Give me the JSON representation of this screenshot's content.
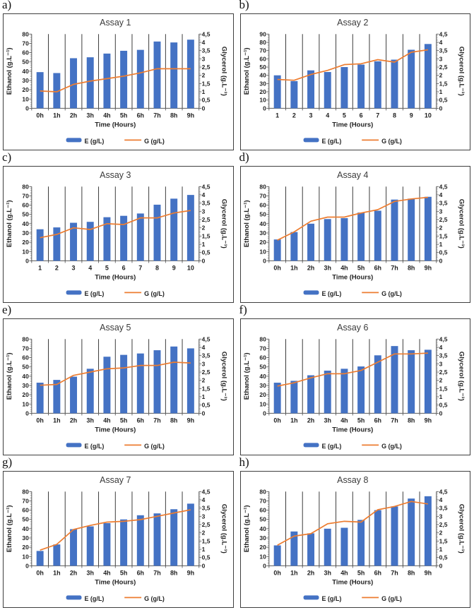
{
  "figure": {
    "colors": {
      "bar": "#4472C4",
      "line": "#ED7D31",
      "gridline": "#262626",
      "axis_line": "#595959",
      "tick_text": "#1f1f1f",
      "title_text": "#3a3a3a",
      "panel_border": "#3f3f3f",
      "background": "#ffffff"
    },
    "legend": {
      "bar_label": "E (g/L)",
      "line_label": "G (g/L)"
    }
  },
  "chart_data": [
    {
      "panel_label": "a)",
      "type": "bar",
      "title": "Assay 1",
      "xlabel": "Time (Hours)",
      "ylabel_left": "Ethanol (g.L⁻¹)",
      "ylabel_right": "Glycerol (g.L⁻¹)",
      "left_axis": {
        "min": 0,
        "max": 80,
        "step": 10
      },
      "right_axis": {
        "min": 0,
        "max": 4.5,
        "step": 0.5,
        "decimal": "comma"
      },
      "categories": [
        "0h",
        "1h",
        "2h",
        "3h",
        "4h",
        "5h",
        "6h",
        "7h",
        "8h",
        "9h"
      ],
      "grid": "vertical-category-lines",
      "legend_position": "bottom",
      "series": [
        {
          "name": "E (g/L)",
          "type": "bar",
          "axis": "left",
          "values": [
            39,
            38,
            54,
            55,
            59,
            62,
            63,
            72,
            71,
            74
          ]
        },
        {
          "name": "G (g/L)",
          "type": "line",
          "axis": "right",
          "values": [
            1.05,
            1.0,
            1.45,
            1.65,
            1.8,
            1.95,
            2.15,
            2.4,
            2.4,
            2.4
          ]
        }
      ]
    },
    {
      "panel_label": "b)",
      "type": "bar",
      "title": "Assay 2",
      "xlabel": "Time (Hours)",
      "ylabel_left": "Ethanol (g.L⁻¹)",
      "ylabel_right": "Glycerol (g.L⁻¹)",
      "left_axis": {
        "min": 0,
        "max": 90,
        "step": 10
      },
      "right_axis": {
        "min": 0,
        "max": 4.5,
        "step": 0.5,
        "decimal": "comma"
      },
      "categories": [
        "1",
        "2",
        "3",
        "4",
        "5",
        "6",
        "7",
        "8",
        "9",
        "10"
      ],
      "grid": "vertical-category-lines",
      "legend_position": "bottom",
      "series": [
        {
          "name": "E (g/L)",
          "type": "bar",
          "axis": "left",
          "values": [
            40,
            33,
            46,
            44,
            50,
            53,
            57,
            59,
            71,
            78
          ]
        },
        {
          "name": "G (g/L)",
          "type": "line",
          "axis": "right",
          "values": [
            1.75,
            1.7,
            2.05,
            2.3,
            2.65,
            2.7,
            2.95,
            2.8,
            3.4,
            3.55
          ]
        }
      ]
    },
    {
      "panel_label": "c)",
      "type": "bar",
      "title": "Assay 3",
      "xlabel": "Time (Hours)",
      "ylabel_left": "Ethanol (g.L⁻¹)",
      "ylabel_right": "Glycerol (g.L⁻¹)",
      "left_axis": {
        "min": 0,
        "max": 80,
        "step": 10
      },
      "right_axis": {
        "min": 0,
        "max": 4.5,
        "step": 0.5,
        "decimal": "comma"
      },
      "categories": [
        "1",
        "2",
        "3",
        "4",
        "5",
        "6",
        "7",
        "8",
        "9",
        "10"
      ],
      "grid": "vertical-category-lines",
      "legend_position": "bottom",
      "series": [
        {
          "name": "E (g/L)",
          "type": "bar",
          "axis": "left",
          "values": [
            34,
            36,
            41,
            42,
            47,
            48.5,
            51,
            60.5,
            67,
            71
          ]
        },
        {
          "name": "G (g/L)",
          "type": "line",
          "axis": "right",
          "values": [
            1.4,
            1.6,
            2.0,
            1.9,
            2.25,
            2.2,
            2.6,
            2.6,
            2.9,
            3.05
          ]
        }
      ]
    },
    {
      "panel_label": "d)",
      "type": "bar",
      "title": "Assay 4",
      "xlabel": "Time (Hours)",
      "ylabel_left": "Ethanol (g.L⁻¹)",
      "ylabel_right": "Glycerol (g.L⁻¹)",
      "left_axis": {
        "min": 0,
        "max": 80,
        "step": 10
      },
      "right_axis": {
        "min": 0,
        "max": 4.5,
        "step": 0.5,
        "decimal": "comma"
      },
      "categories": [
        "0h",
        "1h",
        "2h",
        "3h",
        "4h",
        "5h",
        "6h",
        "7h",
        "8h",
        "9h"
      ],
      "grid": "vertical-category-lines",
      "legend_position": "bottom",
      "series": [
        {
          "name": "E (g/L)",
          "type": "bar",
          "axis": "left",
          "values": [
            23,
            31,
            40,
            45,
            46,
            52,
            54,
            66,
            67,
            69
          ]
        },
        {
          "name": "G (g/L)",
          "type": "line",
          "axis": "right",
          "values": [
            1.25,
            1.75,
            2.4,
            2.65,
            2.65,
            2.9,
            3.1,
            3.6,
            3.75,
            3.85
          ]
        }
      ]
    },
    {
      "panel_label": "e)",
      "type": "bar",
      "title": "Assay 5",
      "xlabel": "Time (Hours)",
      "ylabel_left": "Ethanol (g.L⁻¹)",
      "ylabel_right": "Glycerol (g.L⁻¹)",
      "left_axis": {
        "min": 0,
        "max": 80,
        "step": 10
      },
      "right_axis": {
        "min": 0,
        "max": 4.5,
        "step": 0.5,
        "decimal": "comma"
      },
      "categories": [
        "0h",
        "1h",
        "2h",
        "3h",
        "4h",
        "5h",
        "6h",
        "7h",
        "8h",
        "9h"
      ],
      "grid": "vertical-category-lines",
      "legend_position": "bottom",
      "series": [
        {
          "name": "E (g/L)",
          "type": "bar",
          "axis": "left",
          "values": [
            33,
            36,
            39.5,
            48,
            61,
            63,
            64.5,
            68,
            72,
            70
          ]
        },
        {
          "name": "G (g/L)",
          "type": "line",
          "axis": "right",
          "values": [
            1.7,
            1.75,
            2.3,
            2.5,
            2.7,
            2.75,
            2.9,
            2.9,
            3.1,
            3.05
          ]
        }
      ]
    },
    {
      "panel_label": "f)",
      "type": "bar",
      "title": "Assay 6",
      "xlabel": "Time (Hours)",
      "ylabel_left": "Ethanol (g.L⁻¹)",
      "ylabel_right": "Glycerol (g.L⁻¹)",
      "left_axis": {
        "min": 0,
        "max": 80,
        "step": 10
      },
      "right_axis": {
        "min": 0,
        "max": 4.5,
        "step": 0.5,
        "decimal": "comma"
      },
      "categories": [
        "0h",
        "1h",
        "2h",
        "3h",
        "4h",
        "5h",
        "6h",
        "7h",
        "8h",
        "9h"
      ],
      "grid": "vertical-category-lines",
      "legend_position": "bottom",
      "series": [
        {
          "name": "E (g/L)",
          "type": "bar",
          "axis": "left",
          "values": [
            33,
            35,
            41,
            46,
            48,
            50.5,
            62.5,
            72.5,
            68,
            68.5
          ]
        },
        {
          "name": "G (g/L)",
          "type": "line",
          "axis": "right",
          "values": [
            1.65,
            1.85,
            2.15,
            2.4,
            2.4,
            2.6,
            3.1,
            3.6,
            3.6,
            3.65
          ]
        }
      ]
    },
    {
      "panel_label": "g)",
      "type": "bar",
      "title": "Assay 7",
      "xlabel": "Time (Hours)",
      "ylabel_left": "Ethanol (g.L⁻¹)",
      "ylabel_right": "Glycerol (g.L⁻¹)",
      "left_axis": {
        "min": 0,
        "max": 80,
        "step": 10
      },
      "right_axis": {
        "min": 0,
        "max": 4.5,
        "step": 0.5,
        "decimal": "comma"
      },
      "categories": [
        "0h",
        "1h",
        "2h",
        "3h",
        "4h",
        "5h",
        "6h",
        "7h",
        "8h",
        "9h"
      ],
      "grid": "vertical-category-lines",
      "legend_position": "bottom",
      "series": [
        {
          "name": "E (g/L)",
          "type": "bar",
          "axis": "left",
          "values": [
            16,
            23,
            39.5,
            42.5,
            46,
            50,
            54.5,
            56.5,
            61,
            67
          ]
        },
        {
          "name": "G (g/L)",
          "type": "line",
          "axis": "right",
          "values": [
            0.95,
            1.3,
            2.2,
            2.45,
            2.65,
            2.7,
            2.8,
            3.0,
            3.2,
            3.4
          ]
        }
      ]
    },
    {
      "panel_label": "h)",
      "type": "bar",
      "title": "Assay 8",
      "xlabel": "Time (Hours)",
      "ylabel_left": "Ethanol (g.L⁻¹)",
      "ylabel_right": "Glycerol (g.L⁻¹)",
      "left_axis": {
        "min": 0,
        "max": 80,
        "step": 10
      },
      "right_axis": {
        "min": 0,
        "max": 4.5,
        "step": 0.5,
        "decimal": "comma"
      },
      "categories": [
        "0h",
        "1h",
        "2h",
        "3h",
        "4h",
        "5h",
        "6h",
        "7h",
        "8h",
        "9h"
      ],
      "grid": "vertical-category-lines",
      "legend_position": "bottom",
      "series": [
        {
          "name": "E (g/L)",
          "type": "bar",
          "axis": "left",
          "values": [
            22,
            37,
            35,
            40,
            41,
            49.5,
            60,
            64,
            72.5,
            75
          ]
        },
        {
          "name": "G (g/L)",
          "type": "line",
          "axis": "right",
          "values": [
            1.25,
            1.8,
            1.95,
            2.55,
            2.7,
            2.65,
            3.4,
            3.6,
            3.9,
            3.75
          ]
        }
      ]
    }
  ]
}
